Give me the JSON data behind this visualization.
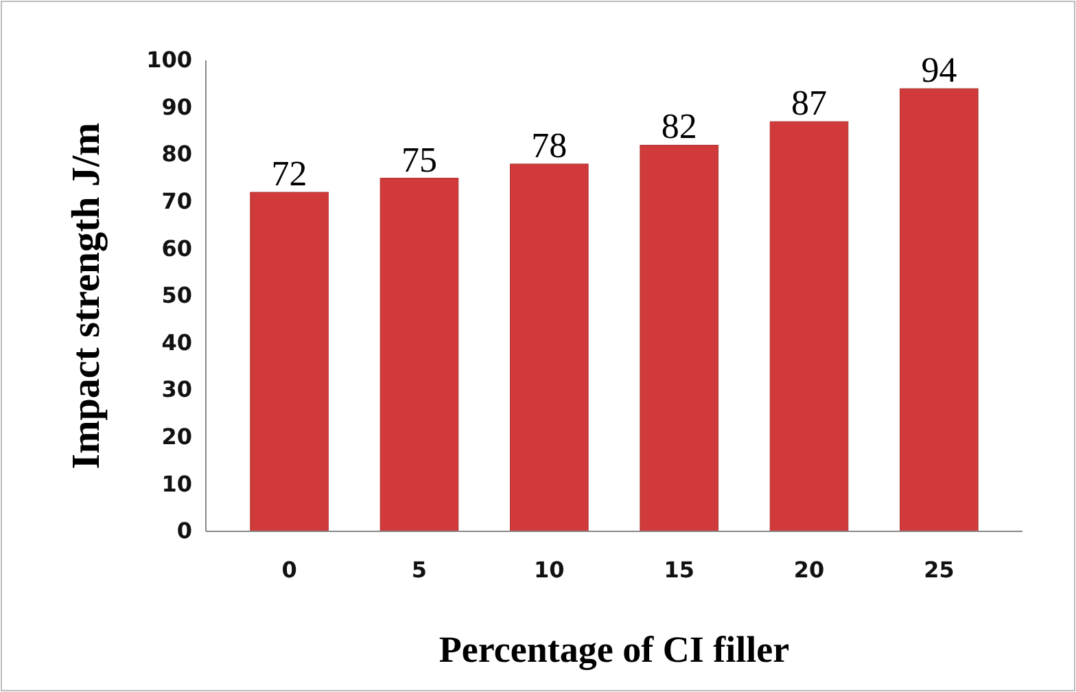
{
  "chart_data": {
    "type": "bar",
    "xlabel": "Percentage of CI filler",
    "ylabel": "Impact strength J/m",
    "categories": [
      "0",
      "5",
      "10",
      "15",
      "20",
      "25"
    ],
    "values": [
      72,
      75,
      78,
      82,
      87,
      94
    ],
    "color": "#d03a3a",
    "ylim": [
      0,
      100
    ],
    "yticks": [
      0,
      10,
      20,
      30,
      40,
      50,
      60,
      70,
      80,
      90,
      100
    ],
    "grid": false,
    "data_labels": true
  }
}
